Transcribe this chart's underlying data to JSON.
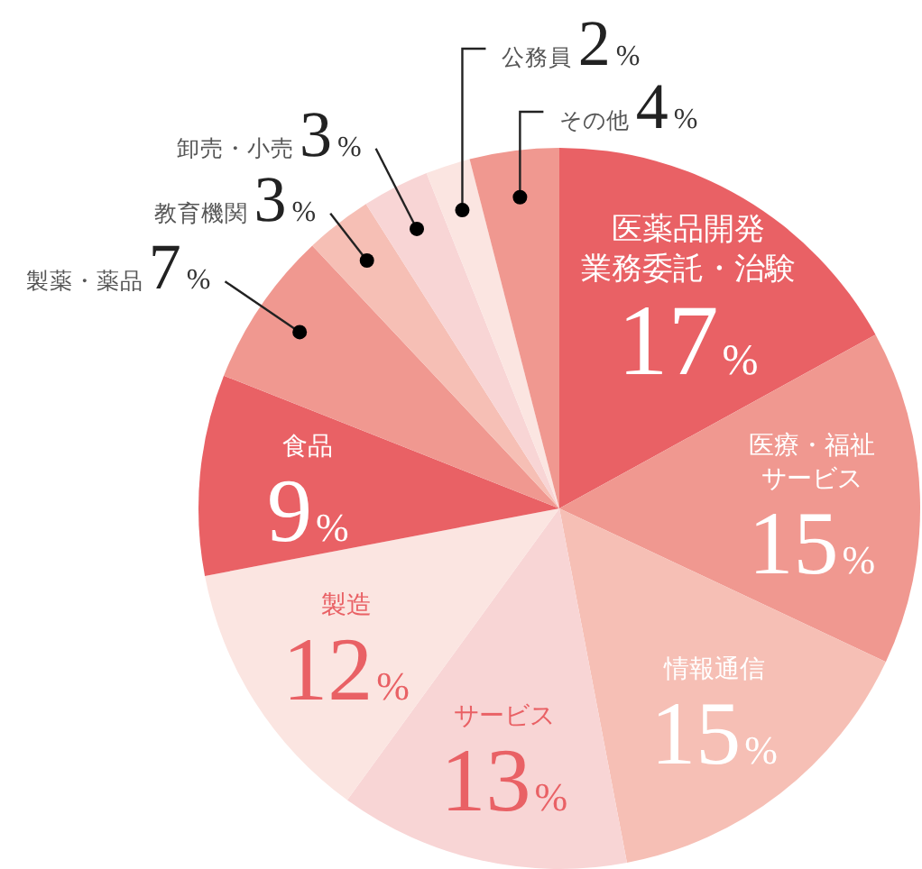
{
  "chart_data": {
    "type": "pie",
    "categories": [
      "医薬品開発業務委託・治験",
      "医療・福祉サービス",
      "情報通信",
      "サービス",
      "製造",
      "食品",
      "製薬・薬品",
      "教育機関",
      "卸売・小売",
      "公務員",
      "その他"
    ],
    "values": [
      17,
      15,
      15,
      13,
      12,
      9,
      7,
      3,
      3,
      2,
      4
    ],
    "colors": [
      "#e96165",
      "#f09890",
      "#f6bfb5",
      "#f8d5d5",
      "#fbe5e1",
      "#e96165",
      "#f09890",
      "#f6bfb5",
      "#f8d5d5",
      "#fbe5e1",
      "#f09890"
    ],
    "value_labels": [
      "17%",
      "15%",
      "15%",
      "13%",
      "12%",
      "9%",
      "7%",
      "3%",
      "3%",
      "2%",
      "4%"
    ]
  }
}
